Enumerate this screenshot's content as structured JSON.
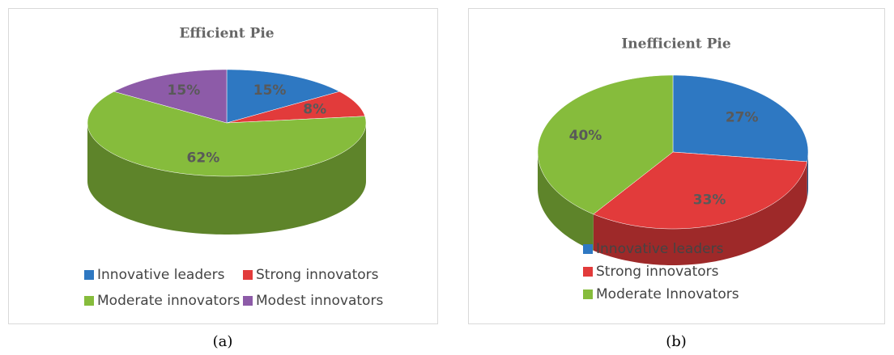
{
  "chart_data": [
    {
      "type": "pie",
      "title": "Efficient Pie",
      "caption": "(a)",
      "categories": [
        "Innovative leaders",
        "Strong innovators",
        "Moderate innovators",
        "Modest innovators"
      ],
      "values": [
        15,
        8,
        62,
        15
      ],
      "value_labels": [
        "15%",
        "8%",
        "62%",
        "15%"
      ],
      "colors": [
        "#2e78c2",
        "#e23b3b",
        "#86bc3c",
        "#8d5ba8"
      ],
      "legend": "bottom"
    },
    {
      "type": "pie",
      "title": "Inefficient Pie",
      "caption": "(b)",
      "categories": [
        "Innovative leaders",
        "Strong innovators",
        "Moderate Innovators"
      ],
      "values": [
        27,
        33,
        40
      ],
      "value_labels": [
        "27%",
        "33%",
        "40%"
      ],
      "colors": [
        "#2e78c2",
        "#e23b3b",
        "#86bc3c"
      ],
      "legend": "bottom"
    }
  ]
}
